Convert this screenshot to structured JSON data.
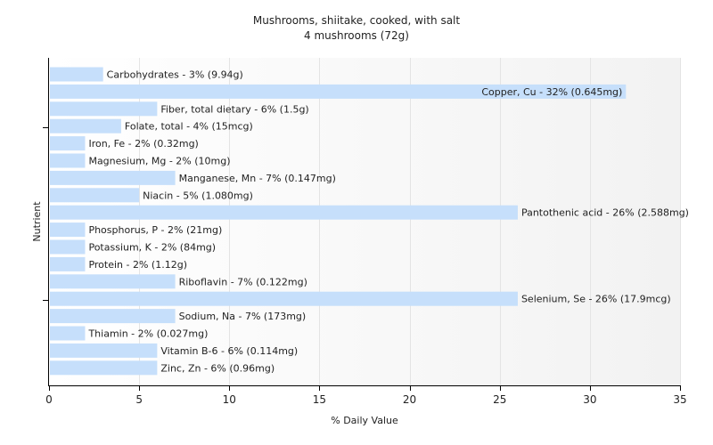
{
  "chart_data": {
    "type": "bar",
    "orientation": "horizontal",
    "title": "Mushrooms, shiitake, cooked, with salt",
    "subtitle": "4 mushrooms (72g)",
    "xlabel": "% Daily Value",
    "ylabel": "Nutrient",
    "xlim": [
      0,
      35
    ],
    "xticks": [
      0,
      5,
      10,
      15,
      20,
      25,
      30,
      35
    ],
    "grid": true,
    "bar_color": "#c6dffb",
    "categories": [
      "Carbohydrates",
      "Copper, Cu",
      "Fiber, total dietary",
      "Folate, total",
      "Iron, Fe",
      "Magnesium, Mg",
      "Manganese, Mn",
      "Niacin",
      "Pantothenic acid",
      "Phosphorus, P",
      "Potassium, K",
      "Protein",
      "Riboflavin",
      "Selenium, Se",
      "Sodium, Na",
      "Thiamin",
      "Vitamin B-6",
      "Zinc, Zn"
    ],
    "values": [
      3,
      32,
      6,
      4,
      2,
      2,
      7,
      5,
      26,
      2,
      2,
      2,
      7,
      26,
      7,
      2,
      6,
      6
    ],
    "data_labels": [
      "Carbohydrates - 3% (9.94g)",
      "Copper, Cu - 32% (0.645mg)",
      "Fiber, total dietary - 6% (1.5g)",
      "Folate, total - 4% (15mcg)",
      "Iron, Fe - 2% (0.32mg)",
      "Magnesium, Mg - 2% (10mg)",
      "Manganese, Mn - 7% (0.147mg)",
      "Niacin - 5% (1.080mg)",
      "Pantothenic acid - 26% (2.588mg)",
      "Phosphorus, P - 2% (21mg)",
      "Potassium, K - 2% (84mg)",
      "Protein - 2% (1.12g)",
      "Riboflavin - 7% (0.122mg)",
      "Selenium, Se - 26% (17.9mcg)",
      "Sodium, Na - 7% (173mg)",
      "Thiamin - 2% (0.027mg)",
      "Vitamin B-6 - 6% (0.114mg)",
      "Zinc, Zn - 6% (0.96mg)"
    ],
    "inside_label_categories": [
      "Copper, Cu"
    ]
  }
}
